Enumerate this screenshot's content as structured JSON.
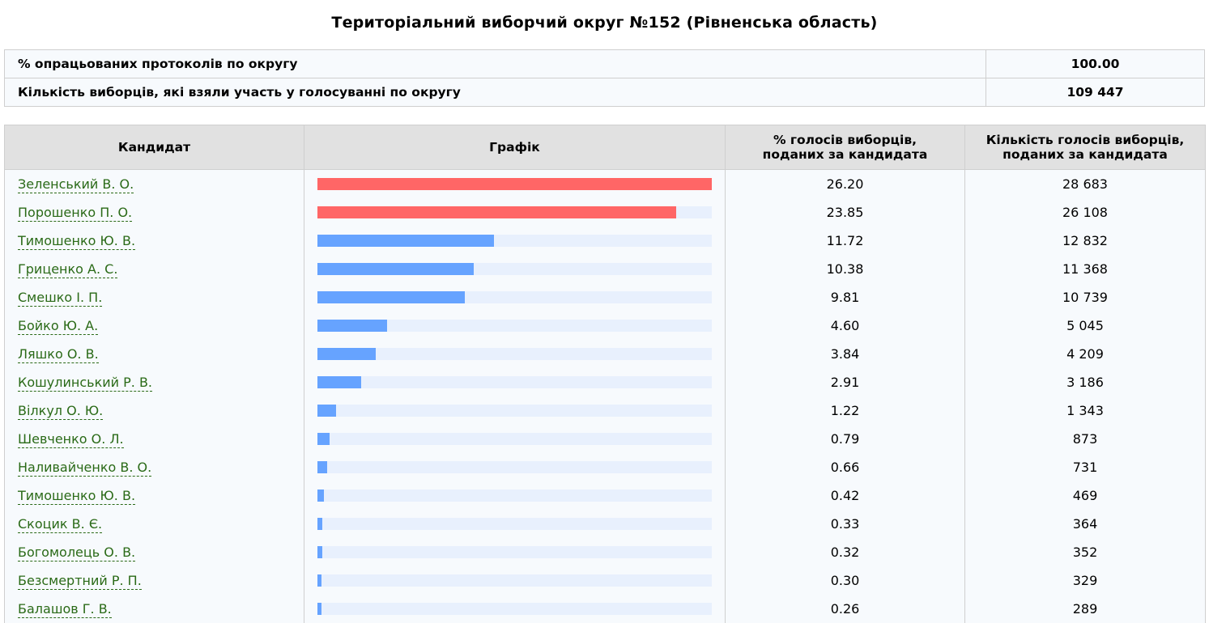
{
  "title": "Територіальний виборчий округ №152 (Рівненська область)",
  "summary": [
    {
      "label": "% опрацьованих протоколів по округу",
      "value": "100.00"
    },
    {
      "label": "Кількість виборців, які взяли участь у голосуванні по округу",
      "value": "109 447"
    }
  ],
  "table": {
    "headers": {
      "candidate": "Кандидат",
      "chart": "Графік",
      "percent_line1": "% голосів виборців,",
      "percent_line2": "поданих за кандидата",
      "votes_line1": "Кількість голосів виборців,",
      "votes_line2": "поданих за кандидата"
    },
    "rows": [
      {
        "name": "Зеленський В. О.",
        "percent": "26.20",
        "votes": "28 683",
        "bar_fraction": 1.0,
        "color": "#ff6666"
      },
      {
        "name": "Порошенко П. О.",
        "percent": "23.85",
        "votes": "26 108",
        "bar_fraction": 0.91,
        "color": "#ff6666"
      },
      {
        "name": "Тимошенко Ю. В.",
        "percent": "11.72",
        "votes": "12 832",
        "bar_fraction": 0.447,
        "color": "#66a3ff"
      },
      {
        "name": "Гриценко А. С.",
        "percent": "10.38",
        "votes": "11 368",
        "bar_fraction": 0.396,
        "color": "#66a3ff"
      },
      {
        "name": "Смешко І. П.",
        "percent": "9.81",
        "votes": "10 739",
        "bar_fraction": 0.374,
        "color": "#66a3ff"
      },
      {
        "name": "Бойко Ю. А.",
        "percent": "4.60",
        "votes": "5 045",
        "bar_fraction": 0.176,
        "color": "#66a3ff"
      },
      {
        "name": "Ляшко О. В.",
        "percent": "3.84",
        "votes": "4 209",
        "bar_fraction": 0.147,
        "color": "#66a3ff"
      },
      {
        "name": "Кошулинський Р. В.",
        "percent": "2.91",
        "votes": "3 186",
        "bar_fraction": 0.111,
        "color": "#66a3ff"
      },
      {
        "name": "Вілкул О. Ю.",
        "percent": "1.22",
        "votes": "1 343",
        "bar_fraction": 0.047,
        "color": "#66a3ff"
      },
      {
        "name": "Шевченко О. Л.",
        "percent": "0.79",
        "votes": "873",
        "bar_fraction": 0.03,
        "color": "#66a3ff"
      },
      {
        "name": "Наливайченко В. О.",
        "percent": "0.66",
        "votes": "731",
        "bar_fraction": 0.025,
        "color": "#66a3ff"
      },
      {
        "name": "Тимошенко Ю. В.",
        "percent": "0.42",
        "votes": "469",
        "bar_fraction": 0.016,
        "color": "#66a3ff"
      },
      {
        "name": "Скоцик В. Є.",
        "percent": "0.33",
        "votes": "364",
        "bar_fraction": 0.013,
        "color": "#66a3ff"
      },
      {
        "name": "Богомолець О. В.",
        "percent": "0.32",
        "votes": "352",
        "bar_fraction": 0.012,
        "color": "#66a3ff"
      },
      {
        "name": "Безсмертний Р. П.",
        "percent": "0.30",
        "votes": "329",
        "bar_fraction": 0.011,
        "color": "#66a3ff"
      },
      {
        "name": "Балашов Г. В.",
        "percent": "0.26",
        "votes": "289",
        "bar_fraction": 0.01,
        "color": "#66a3ff"
      }
    ]
  }
}
